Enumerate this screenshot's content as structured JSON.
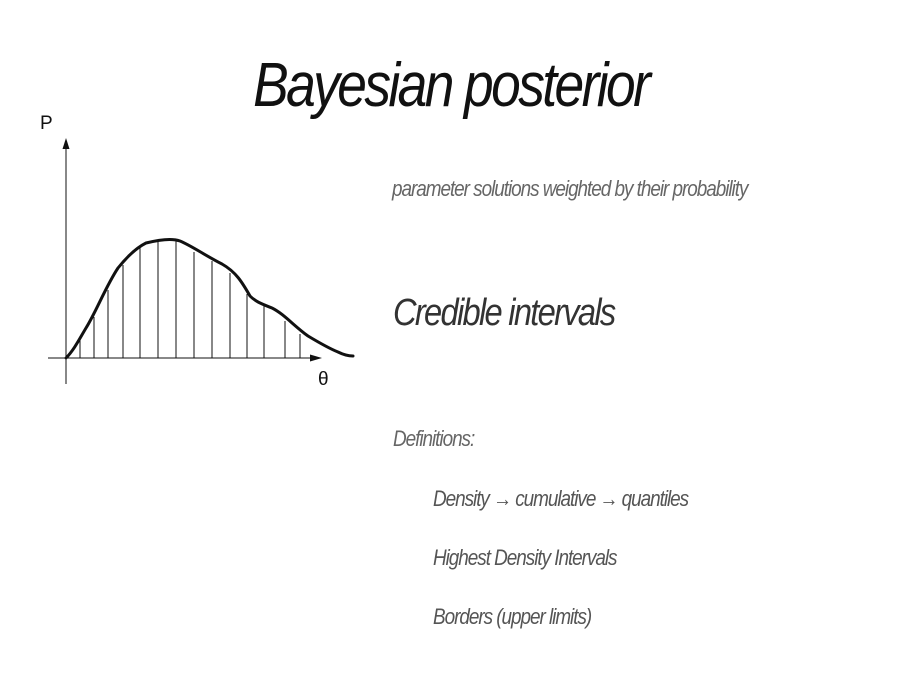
{
  "slide": {
    "title": "Bayesian posterior",
    "subtitle": "parameter solutions weighted by their probability",
    "heading": "Credible intervals",
    "definitions_label": "Definitions:",
    "definition_items": [
      "Density → cumulative → quantiles",
      "Highest Density Intervals",
      "Borders (upper limits)"
    ]
  },
  "diagram": {
    "y_axis_label": "P",
    "x_axis_label": "θ"
  }
}
